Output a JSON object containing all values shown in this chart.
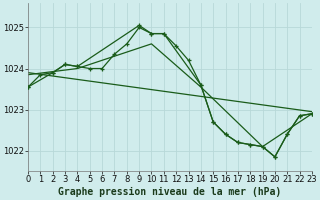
{
  "bg_color": "#d0ecec",
  "grid_color": "#b8d8d8",
  "line_color": "#1a5c1a",
  "ylim": [
    1021.5,
    1025.6
  ],
  "xlim": [
    0,
    23
  ],
  "yticks": [
    1022,
    1023,
    1024,
    1025
  ],
  "xticks": [
    0,
    1,
    2,
    3,
    4,
    5,
    6,
    7,
    8,
    9,
    10,
    11,
    12,
    13,
    14,
    15,
    16,
    17,
    18,
    19,
    20,
    21,
    22,
    23
  ],
  "xlabel": "Graphe pression niveau de la mer (hPa)",
  "tick_fontsize": 6,
  "xlabel_fontsize": 7,
  "series": [
    {
      "x": [
        0,
        1,
        2,
        3,
        4,
        5,
        6,
        7,
        8,
        9,
        10,
        11,
        12,
        13,
        14,
        15,
        16,
        17,
        18,
        19,
        20,
        21,
        22,
        23
      ],
      "y": [
        1023.55,
        1023.85,
        1023.9,
        1024.1,
        1024.05,
        1024.0,
        1024.0,
        1024.35,
        1024.6,
        1025.0,
        1024.85,
        1024.85,
        1024.55,
        1024.2,
        1023.6,
        1022.7,
        1022.4,
        1022.2,
        1022.15,
        1022.1,
        1021.85,
        1022.4,
        1022.85,
        1022.9
      ],
      "marker": true,
      "lw": 0.9
    },
    {
      "x": [
        0,
        2,
        3,
        4,
        9,
        10,
        11,
        14,
        15,
        16,
        17,
        18,
        19,
        20,
        21,
        22,
        23
      ],
      "y": [
        1023.55,
        1023.9,
        1024.1,
        1024.05,
        1025.05,
        1024.85,
        1024.85,
        1023.6,
        1022.7,
        1022.4,
        1022.2,
        1022.15,
        1022.1,
        1021.85,
        1022.4,
        1022.85,
        1022.9
      ],
      "marker": true,
      "lw": 0.9
    },
    {
      "x": [
        0,
        23
      ],
      "y": [
        1023.9,
        1022.95
      ],
      "marker": false,
      "lw": 0.9
    },
    {
      "x": [
        0,
        4,
        10,
        14,
        19,
        23
      ],
      "y": [
        1023.85,
        1024.0,
        1024.6,
        1023.55,
        1022.1,
        1022.9
      ],
      "marker": false,
      "lw": 0.9
    }
  ]
}
